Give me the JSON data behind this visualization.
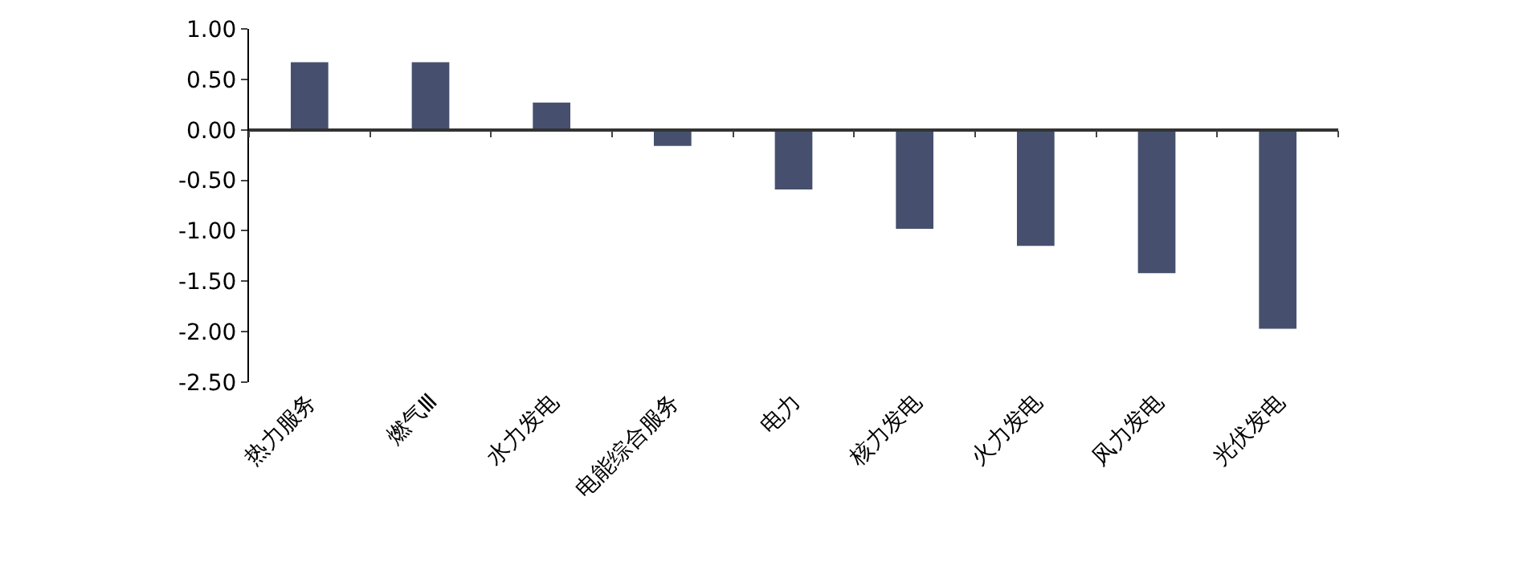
{
  "chart_data": {
    "type": "bar",
    "categories": [
      "热力服务",
      "燃气Ⅲ",
      "水力发电",
      "电能综合服务",
      "电力",
      "核力发电",
      "火力发电",
      "风力发电",
      "光伏发电"
    ],
    "values": [
      0.67,
      0.67,
      0.27,
      -0.16,
      -0.59,
      -0.98,
      -1.15,
      -1.42,
      -1.97
    ],
    "color": "#46506e",
    "ylim": [
      -2.5,
      1.0
    ],
    "yticks": [
      {
        "value": 1.0,
        "label": "1.00"
      },
      {
        "value": 0.5,
        "label": "0.50"
      },
      {
        "value": 0.0,
        "label": "0.00"
      },
      {
        "value": -0.5,
        "label": "-0.50"
      },
      {
        "value": -1.0,
        "label": "-1.00"
      },
      {
        "value": -1.5,
        "label": "-1.50"
      },
      {
        "value": -2.0,
        "label": "-2.00"
      },
      {
        "value": -2.5,
        "label": "-2.50"
      }
    ],
    "legend": false
  }
}
